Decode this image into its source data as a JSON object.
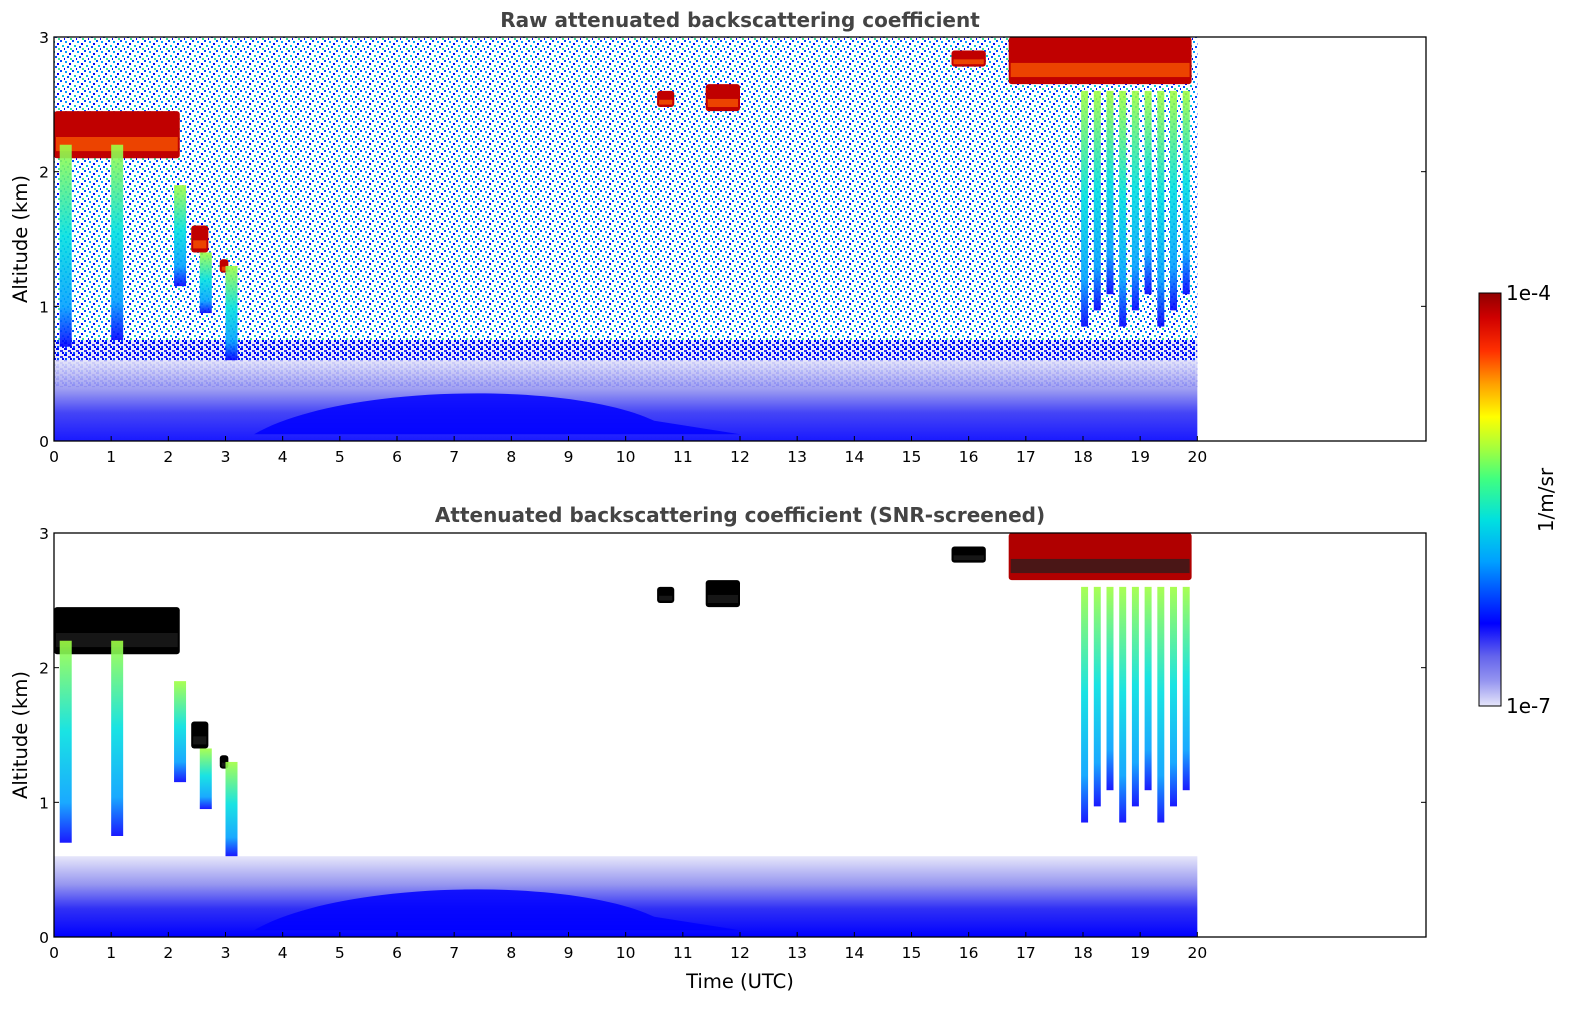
{
  "chart_data": [
    {
      "type": "heatmap",
      "title": "Raw attenuated backscattering coefficient",
      "xlabel": "",
      "ylabel": "Altitude (km)",
      "xlim": [
        0,
        24
      ],
      "ylim": [
        0,
        3
      ],
      "x_ticks": [
        "0",
        "1",
        "2",
        "3",
        "4",
        "5",
        "6",
        "7",
        "8",
        "9",
        "10",
        "11",
        "12",
        "13",
        "14",
        "15",
        "16",
        "17",
        "18",
        "19",
        "20"
      ],
      "y_ticks": [
        "0",
        "1",
        "2",
        "3"
      ],
      "data_extent_time_utc": [
        0,
        20
      ],
      "grid": false,
      "features": [
        {
          "name": "cloud layer",
          "t_start": 0.0,
          "t_end": 2.2,
          "alt_top": 2.45,
          "alt_bottom": 2.1,
          "level": "high"
        },
        {
          "name": "cloud patch",
          "t_start": 2.4,
          "t_end": 2.7,
          "alt_top": 1.6,
          "alt_bottom": 1.4,
          "level": "high"
        },
        {
          "name": "cloud patch",
          "t_start": 2.9,
          "t_end": 3.05,
          "alt_top": 1.35,
          "alt_bottom": 1.25,
          "level": "high"
        },
        {
          "name": "cloud patch",
          "t_start": 10.55,
          "t_end": 10.85,
          "alt_top": 2.6,
          "alt_bottom": 2.48,
          "level": "high"
        },
        {
          "name": "cloud patch",
          "t_start": 11.4,
          "t_end": 12.0,
          "alt_top": 2.65,
          "alt_bottom": 2.45,
          "level": "high"
        },
        {
          "name": "cloud patch",
          "t_start": 15.7,
          "t_end": 16.3,
          "alt_top": 2.9,
          "alt_bottom": 2.78,
          "level": "high"
        },
        {
          "name": "cloud layer",
          "t_start": 16.7,
          "t_end": 19.9,
          "alt_top": 3.0,
          "alt_bottom": 2.65,
          "level": "high"
        },
        {
          "name": "precipitation fall streaks",
          "t_start": 17.9,
          "t_end": 19.9,
          "alt_top": 2.6,
          "alt_bottom": 0.85,
          "level": "medium"
        },
        {
          "name": "boundary layer aerosol",
          "t_start": 0.0,
          "t_end": 20.0,
          "alt_top": 0.45,
          "alt_bottom": 0.0,
          "level": "low"
        }
      ]
    },
    {
      "type": "heatmap",
      "title": "Attenuated backscattering coefficient (SNR-screened)",
      "xlabel": "Time (UTC)",
      "ylabel": "Altitude (km)",
      "xlim": [
        0,
        24
      ],
      "ylim": [
        0,
        3
      ],
      "x_ticks": [
        "0",
        "1",
        "2",
        "3",
        "4",
        "5",
        "6",
        "7",
        "8",
        "9",
        "10",
        "11",
        "12",
        "13",
        "14",
        "15",
        "16",
        "17",
        "18",
        "19",
        "20"
      ],
      "y_ticks": [
        "0",
        "1",
        "2",
        "3"
      ],
      "data_extent_time_utc": [
        0,
        20
      ],
      "grid": false,
      "screened_out": "white background (low SNR removed)",
      "saturated_color": "#000000"
    }
  ],
  "colorbar": {
    "label": "1/m/sr",
    "max_label": "1e-4",
    "min_label": "1e-7",
    "colormap": [
      "#e6e6fa",
      "#c8c8f5",
      "#9696f0",
      "#6464ec",
      "#0000ff",
      "#0050ff",
      "#00a0ff",
      "#00e0e0",
      "#40ff80",
      "#a0ff40",
      "#ffff00",
      "#ffc000",
      "#ff8000",
      "#ff3000",
      "#e00000",
      "#900000"
    ]
  },
  "colors": {
    "background": "#ffffff",
    "title": "#444444",
    "axis": "#000000"
  }
}
